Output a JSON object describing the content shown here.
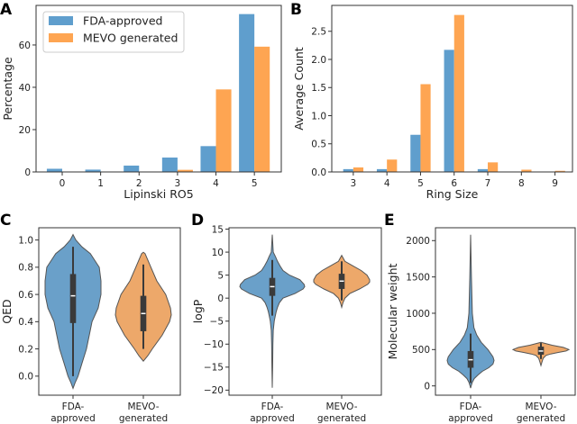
{
  "colors": {
    "fda_bar": "#5f9ecd",
    "mevo_bar": "#fea552",
    "fda_violin": "#6aa0c9",
    "mevo_violin": "#eda86a",
    "box": "#3a3a3a"
  },
  "chart_data": [
    {
      "panel": "A",
      "type": "bar",
      "xlabel": "Lipinski RO5",
      "ylabel": "Percentage",
      "categories": [
        "0",
        "1",
        "2",
        "3",
        "4",
        "5"
      ],
      "ylim": [
        0,
        78.7
      ],
      "yticks": [
        0,
        20,
        40,
        60
      ],
      "legend": "top-left",
      "series": [
        {
          "name": "FDA-approved",
          "values": [
            1.5,
            1.1,
            3.0,
            6.8,
            12.2,
            74.6
          ]
        },
        {
          "name": "MEVO generated",
          "values": [
            0,
            0,
            0,
            1.0,
            39.0,
            59.2
          ]
        }
      ]
    },
    {
      "panel": "B",
      "type": "bar",
      "xlabel": "Ring Size",
      "ylabel": "Average Count",
      "categories": [
        "3",
        "4",
        "5",
        "6",
        "7",
        "8",
        "9"
      ],
      "ylim": [
        0,
        2.96
      ],
      "yticks": [
        "0.0",
        "0.5",
        "1.0",
        "1.5",
        "2.0",
        "2.5"
      ],
      "series": [
        {
          "values": [
            0.05,
            0.05,
            0.66,
            2.17,
            0.05,
            0,
            0
          ]
        },
        {
          "values": [
            0.08,
            0.22,
            1.56,
            2.79,
            0.17,
            0.04,
            0.02
          ]
        }
      ]
    },
    {
      "panel": "C",
      "type": "violin",
      "ylabel": "QED",
      "ylim": [
        -0.14,
        1.09
      ],
      "yticks": [
        "0.0",
        "0.2",
        "0.4",
        "0.6",
        "0.8",
        "1.0"
      ],
      "categories": [
        [
          "FDA-",
          "approved"
        ],
        [
          "MEVO-",
          "generated"
        ]
      ],
      "violins": [
        {
          "median": 0.59,
          "q1": 0.39,
          "q3": 0.75,
          "whisker_low": 0.0,
          "whisker_high": 0.95,
          "density": [
            [
              -0.09,
              0
            ],
            [
              -0.05,
              0.07
            ],
            [
              0,
              0.18
            ],
            [
              0.1,
              0.33
            ],
            [
              0.2,
              0.48
            ],
            [
              0.3,
              0.58
            ],
            [
              0.4,
              0.68
            ],
            [
              0.5,
              0.9
            ],
            [
              0.6,
              1
            ],
            [
              0.7,
              1
            ],
            [
              0.8,
              0.94
            ],
            [
              0.9,
              0.62
            ],
            [
              0.95,
              0.32
            ],
            [
              1.0,
              0.1
            ],
            [
              1.04,
              0
            ]
          ]
        },
        {
          "median": 0.46,
          "q1": 0.33,
          "q3": 0.59,
          "whisker_low": 0.2,
          "whisker_high": 0.82,
          "density": [
            [
              0.11,
              0
            ],
            [
              0.15,
              0.16
            ],
            [
              0.2,
              0.32
            ],
            [
              0.3,
              0.67
            ],
            [
              0.4,
              0.94
            ],
            [
              0.45,
              1
            ],
            [
              0.5,
              0.97
            ],
            [
              0.6,
              0.8
            ],
            [
              0.7,
              0.48
            ],
            [
              0.8,
              0.27
            ],
            [
              0.9,
              0.06
            ],
            [
              0.91,
              0
            ]
          ]
        }
      ]
    },
    {
      "panel": "D",
      "type": "violin",
      "ylabel": "logP",
      "ylim": [
        -21.1,
        15.3
      ],
      "yticks": [
        "-20",
        "-15",
        "-10",
        "-5",
        "0",
        "5",
        "10",
        "15"
      ],
      "categories": [
        [
          "FDA-",
          "approved"
        ],
        [
          "MEVO-",
          "generated"
        ]
      ],
      "violins": [
        {
          "median": 2.5,
          "q1": 0.5,
          "q3": 4.4,
          "whisker_low": -3.8,
          "whisker_high": 8.3,
          "density": [
            [
              -19.5,
              0
            ],
            [
              -15,
              0.01
            ],
            [
              -10,
              0.02
            ],
            [
              -7,
              0.03
            ],
            [
              -5,
              0.06
            ],
            [
              -4,
              0.09
            ],
            [
              -3,
              0.12
            ],
            [
              -2,
              0.16
            ],
            [
              -1,
              0.22
            ],
            [
              0,
              0.33
            ],
            [
              1,
              0.7
            ],
            [
              2,
              0.95
            ],
            [
              2.5,
              1
            ],
            [
              3,
              0.98
            ],
            [
              4,
              0.85
            ],
            [
              5,
              0.53
            ],
            [
              6,
              0.33
            ],
            [
              7,
              0.24
            ],
            [
              8,
              0.16
            ],
            [
              9,
              0.1
            ],
            [
              10,
              0.03
            ],
            [
              13.8,
              0
            ]
          ]
        },
        {
          "median": 3.7,
          "q1": 2.0,
          "q3": 5.3,
          "whisker_low": -0.5,
          "whisker_high": 8.0,
          "density": [
            [
              -2,
              0
            ],
            [
              -1,
              0.04
            ],
            [
              0,
              0.1
            ],
            [
              1,
              0.25
            ],
            [
              2,
              0.55
            ],
            [
              3,
              0.8
            ],
            [
              3.5,
              0.86
            ],
            [
              4,
              0.86
            ],
            [
              5,
              0.78
            ],
            [
              6,
              0.6
            ],
            [
              7,
              0.35
            ],
            [
              8,
              0.1
            ],
            [
              9.3,
              0
            ]
          ]
        }
      ]
    },
    {
      "panel": "E",
      "type": "violin",
      "ylabel": "Molecular weight",
      "ylim": [
        -128,
        2177
      ],
      "yticks": [
        "0",
        "500",
        "1000",
        "1500",
        "2000"
      ],
      "categories": [
        [
          "FDA-",
          "approved"
        ],
        [
          "MEVO-",
          "generated"
        ]
      ],
      "violins": [
        {
          "median": 360,
          "q1": 250,
          "q3": 480,
          "whisker_low": 40,
          "whisker_high": 720,
          "density": [
            [
              -30,
              0
            ],
            [
              0,
              0.02
            ],
            [
              50,
              0.06
            ],
            [
              100,
              0.13
            ],
            [
              150,
              0.26
            ],
            [
              200,
              0.42
            ],
            [
              250,
              0.65
            ],
            [
              300,
              0.8
            ],
            [
              350,
              0.84
            ],
            [
              400,
              0.8
            ],
            [
              500,
              0.62
            ],
            [
              600,
              0.38
            ],
            [
              700,
              0.22
            ],
            [
              800,
              0.12
            ],
            [
              1000,
              0.06
            ],
            [
              1500,
              0.03
            ],
            [
              2080,
              0
            ]
          ]
        },
        {
          "median": 480,
          "q1": 430,
          "q3": 540,
          "whisker_low": 370,
          "whisker_high": 590,
          "density": [
            [
              280,
              0
            ],
            [
              330,
              0.04
            ],
            [
              380,
              0.08
            ],
            [
              420,
              0.18
            ],
            [
              440,
              0.35
            ],
            [
              460,
              0.6
            ],
            [
              480,
              0.9
            ],
            [
              500,
              1
            ],
            [
              530,
              0.8
            ],
            [
              560,
              0.4
            ],
            [
              580,
              0.2
            ],
            [
              600,
              0
            ]
          ]
        }
      ]
    }
  ]
}
